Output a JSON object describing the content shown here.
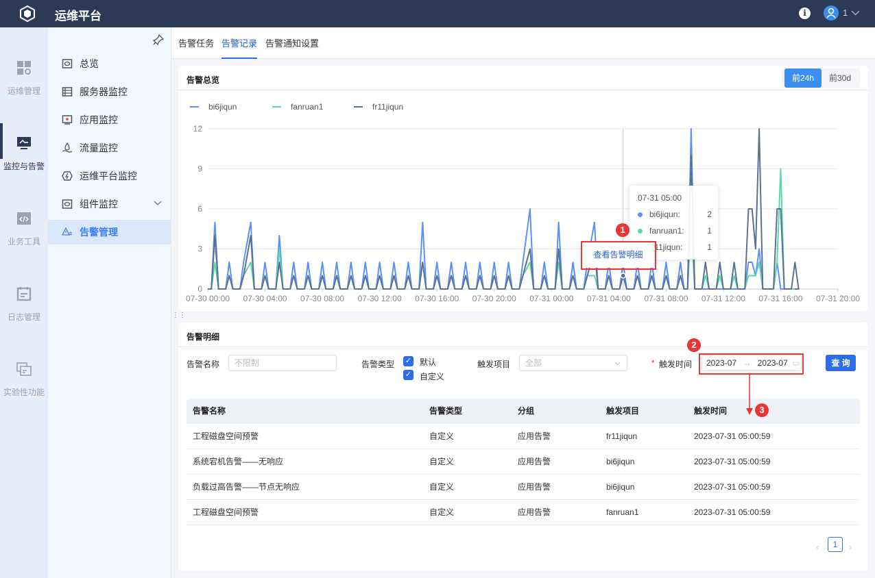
{
  "header": {
    "title": "运维平台",
    "user": "1"
  },
  "rail": [
    {
      "label": "运维管理",
      "icon": "grid-gear-icon"
    },
    {
      "label": "监控与告警",
      "icon": "monitor-icon",
      "active": true
    },
    {
      "label": "业务工具",
      "icon": "code-window-icon"
    },
    {
      "label": "日志管理",
      "icon": "calendar-log-icon"
    },
    {
      "label": "实验性功能",
      "icon": "windows-icon"
    }
  ],
  "submenu": [
    {
      "label": "总览",
      "icon": "overview-icon"
    },
    {
      "label": "服务器监控",
      "icon": "server-icon"
    },
    {
      "label": "应用监控",
      "icon": "app-icon"
    },
    {
      "label": "流量监控",
      "icon": "traffic-icon"
    },
    {
      "label": "运维平台监控",
      "icon": "platform-icon"
    },
    {
      "label": "组件监控",
      "icon": "component-icon"
    },
    {
      "label": "告警管理",
      "icon": "alert-icon",
      "active": true
    }
  ],
  "tabs": [
    "告警任务",
    "告警记录",
    "告警通知设置"
  ],
  "overview": {
    "title": "告警总览",
    "range_buttons": [
      "前24h",
      "前30d"
    ],
    "active_range": "前24h"
  },
  "tooltip": {
    "time": "07-31 05:00",
    "rows": [
      {
        "name": "bi6jiqun:",
        "value": "2"
      },
      {
        "name": "fanruan1:",
        "value": "1"
      },
      {
        "name": "fr11jiqun:",
        "value": "1"
      }
    ]
  },
  "context_menu": {
    "label": "查看告警明细"
  },
  "annotations": [
    "1",
    "2",
    "3"
  ],
  "chart_data": {
    "type": "line",
    "legend": [
      "bi6jiqun",
      "fanruan1",
      "fr11jiqun"
    ],
    "colors": [
      "#5b8ff9",
      "#5ad8a6",
      "#5d7092"
    ],
    "ylim": [
      0,
      12
    ],
    "yticks": [
      "0",
      "3",
      "6",
      "9",
      "12"
    ],
    "xticks": [
      "07-30 00:00",
      "07-30 04:00",
      "07-30 08:00",
      "07-30 12:00",
      "07-30 16:00",
      "07-30 20:00",
      "07-31 00:00",
      "07-31 04:00",
      "07-31 08:00",
      "07-31 12:00",
      "07-31 16:00",
      "07-31 20:00"
    ],
    "points": [
      [
        "07-30 00:30",
        5,
        2,
        4
      ],
      [
        "07-30 01:30",
        2,
        1,
        1
      ],
      [
        "07-30 02:30",
        2,
        1,
        1
      ],
      [
        "07-30 03:00",
        5,
        2,
        4
      ],
      [
        "07-30 04:00",
        2,
        1,
        1
      ],
      [
        "07-30 05:00",
        4,
        3,
        2
      ],
      [
        "07-30 06:00",
        2,
        1,
        1
      ],
      [
        "07-30 07:00",
        2,
        1,
        1
      ],
      [
        "07-30 08:00",
        2,
        1,
        1
      ],
      [
        "07-30 09:00",
        2,
        1,
        1
      ],
      [
        "07-30 10:00",
        2,
        1,
        1
      ],
      [
        "07-30 11:00",
        2,
        1,
        1
      ],
      [
        "07-30 12:00",
        2,
        1,
        1
      ],
      [
        "07-30 13:00",
        2,
        1,
        1
      ],
      [
        "07-30 14:00",
        2,
        1,
        1
      ],
      [
        "07-30 15:00",
        5,
        2,
        2
      ],
      [
        "07-30 16:00",
        2,
        1,
        1
      ],
      [
        "07-30 17:00",
        2,
        1,
        1
      ],
      [
        "07-30 18:00",
        2,
        1,
        1
      ],
      [
        "07-30 19:00",
        2,
        1,
        1
      ],
      [
        "07-30 20:00",
        2,
        1,
        1
      ],
      [
        "07-30 21:00",
        2,
        1,
        1
      ],
      [
        "07-30 22:00",
        2,
        1,
        1
      ],
      [
        "07-30 22:30",
        6,
        2,
        3
      ],
      [
        "07-30 23:30",
        2,
        1,
        1
      ],
      [
        "07-31 00:30",
        5,
        2,
        3
      ],
      [
        "07-31 01:30",
        2,
        1,
        1
      ],
      [
        "07-31 02:30",
        2,
        1,
        1
      ],
      [
        "07-31 03:00",
        5,
        1,
        3
      ],
      [
        "07-31 04:00",
        2,
        1,
        1
      ],
      [
        "07-31 05:00",
        2,
        1,
        1
      ],
      [
        "07-31 06:00",
        2,
        1,
        1
      ],
      [
        "07-31 07:00",
        2,
        1,
        1
      ],
      [
        "07-31 08:00",
        2,
        1,
        1
      ],
      [
        "07-31 09:00",
        2,
        1,
        1
      ],
      [
        "07-31 09:45",
        12,
        5,
        10
      ],
      [
        "07-31 10:45",
        0,
        1,
        2
      ],
      [
        "07-31 11:45",
        0,
        1,
        2
      ],
      [
        "07-31 12:45",
        0,
        1,
        2
      ],
      [
        "07-31 13:45",
        2,
        1,
        6
      ],
      [
        "07-31 14:00",
        2,
        1,
        6
      ],
      [
        "07-31 14:15",
        1,
        1,
        3
      ],
      [
        "07-31 14:30",
        3,
        2,
        12
      ],
      [
        "07-31 15:45",
        2,
        2,
        6
      ],
      [
        "07-31 16:00",
        0,
        9,
        6
      ],
      [
        "07-31 17:00",
        0,
        0,
        2
      ]
    ]
  },
  "detail": {
    "title": "告警明细",
    "filters": {
      "name_label": "告警名称",
      "name_placeholder": "不限制",
      "type_label": "告警类型",
      "type_options": [
        "默认",
        "自定义"
      ],
      "project_label": "触发项目",
      "project_placeholder": "全部",
      "time_required": "*",
      "time_label": "触发时间",
      "time_start": "2023-07",
      "time_sep": "→",
      "time_end": "2023-07",
      "query": "查 询"
    },
    "columns": [
      "告警名称",
      "告警类型",
      "分组",
      "触发项目",
      "触发时间"
    ],
    "rows": [
      [
        "工程磁盘空间预警",
        "自定义",
        "应用告警",
        "fr11jiqun",
        "2023-07-31 05:00:59"
      ],
      [
        "系统宕机告警——无响应",
        "自定义",
        "应用告警",
        "bi6jiqun",
        "2023-07-31 05:00:59"
      ],
      [
        "负载过高告警——节点无响应",
        "自定义",
        "应用告警",
        "bi6jiqun",
        "2023-07-31 05:00:59"
      ],
      [
        "工程磁盘空间预警",
        "自定义",
        "应用告警",
        "fanruan1",
        "2023-07-31 05:00:59"
      ]
    ],
    "pagination": {
      "current": "1"
    }
  }
}
